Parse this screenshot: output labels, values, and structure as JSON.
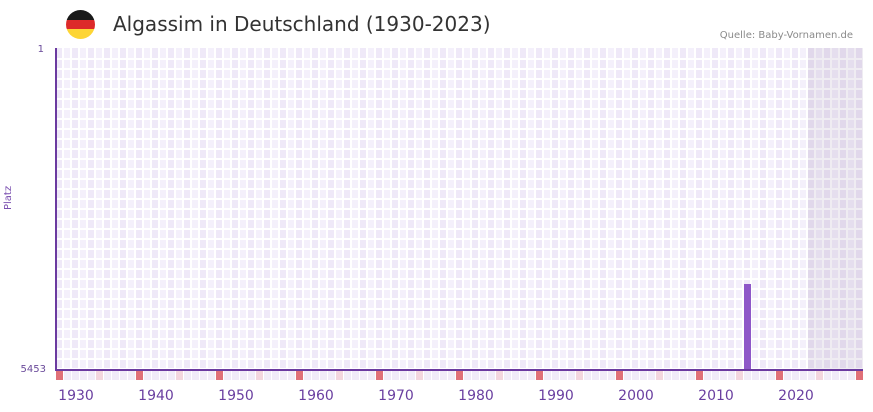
{
  "header": {
    "title": "Algassim in Deutschland (1930-2023)",
    "source": "Quelle: Baby-Vornamen.de",
    "flag_colors": [
      "#1a1a1a",
      "#dd2a2a",
      "#fdd535"
    ]
  },
  "colors": {
    "bar": "#8e57c8",
    "axis": "#6b3aa0",
    "grid_a": "#efe9f8",
    "grid_b": "#f4f0fb",
    "marker_decade": "#e07078",
    "marker_half": "#f3d6de",
    "marker_plain": "#f1ecf8"
  },
  "chart_data": {
    "type": "bar",
    "title": "Algassim in Deutschland (1930-2023)",
    "xlabel": "",
    "ylabel": "Platz",
    "y_inverted": true,
    "ylim": [
      1,
      5453
    ],
    "yticks": [
      "1",
      "5453"
    ],
    "xlim": [
      1928,
      2028
    ],
    "xticks": [
      "1930",
      "1940",
      "1950",
      "1960",
      "1970",
      "1980",
      "1990",
      "2000",
      "2010",
      "2020"
    ],
    "grid": true,
    "shaded_region": [
      2022,
      2028
    ],
    "series": [
      {
        "name": "Platz",
        "x": [
          2014
        ],
        "values": [
          4000
        ]
      }
    ]
  },
  "axis": {
    "ylabel": "Platz",
    "ytop": "1",
    "ybottom": "5453",
    "xticks": [
      "1930",
      "1940",
      "1950",
      "1960",
      "1970",
      "1980",
      "1990",
      "2000",
      "2010",
      "2020"
    ]
  }
}
